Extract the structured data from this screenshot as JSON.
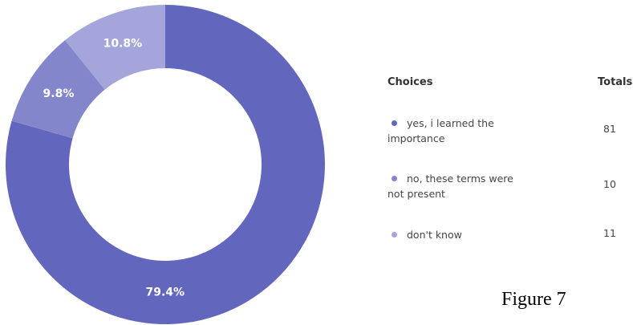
{
  "chart_data": {
    "type": "pie",
    "categories": [
      "yes, i learned the importance",
      "no, these terms were not present",
      "don't know"
    ],
    "values": [
      79.4,
      9.8,
      10.8
    ],
    "value_labels": [
      "79.4%",
      "9.8%",
      "10.8%"
    ],
    "colors": [
      "#6266bd",
      "#8486cb",
      "#a4a5db"
    ],
    "table_headers": [
      "Choices",
      "Totals"
    ],
    "totals": [
      81,
      10,
      11
    ],
    "caption": "Figure 7"
  }
}
